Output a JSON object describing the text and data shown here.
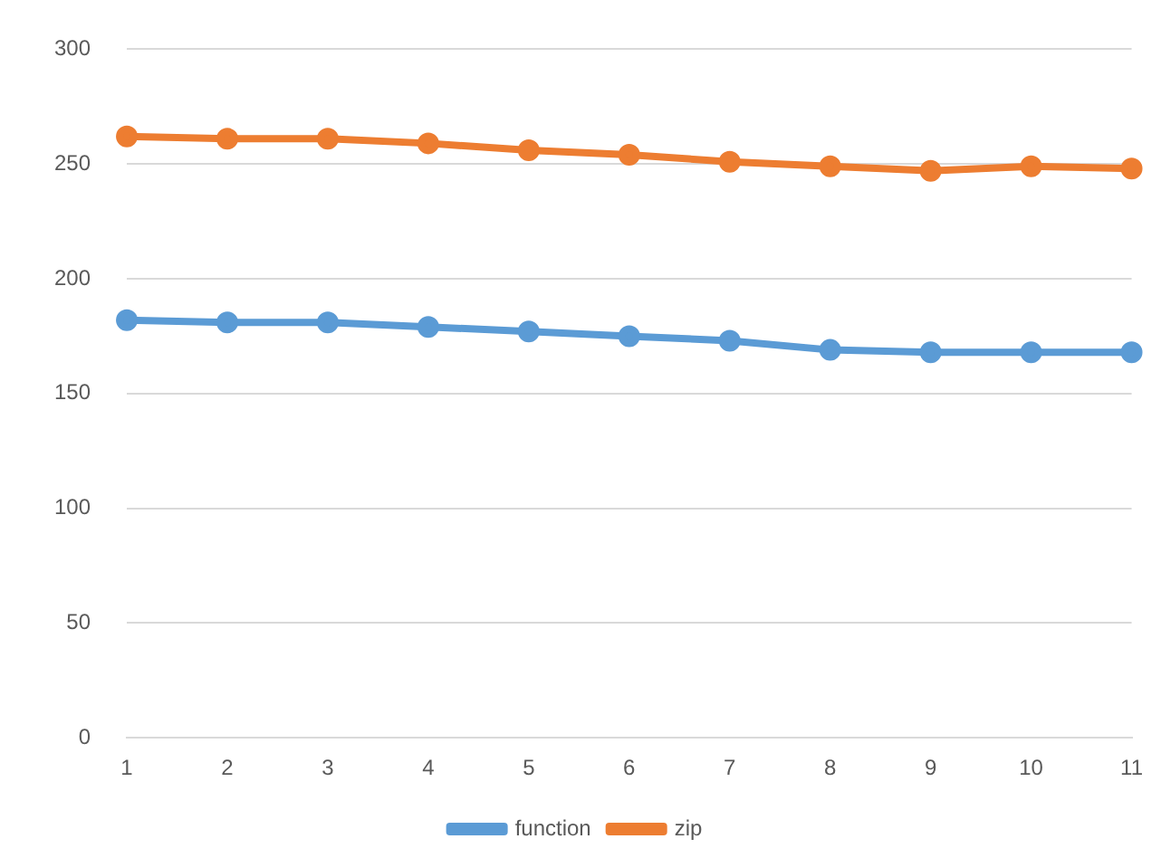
{
  "chart_data": {
    "type": "line",
    "categories": [
      "1",
      "2",
      "3",
      "4",
      "5",
      "6",
      "7",
      "8",
      "9",
      "10",
      "11"
    ],
    "series": [
      {
        "name": "function",
        "color": "#5b9bd5",
        "values": [
          182,
          181,
          181,
          179,
          177,
          175,
          173,
          169,
          168,
          168,
          168
        ]
      },
      {
        "name": "zip",
        "color": "#ed7d31",
        "values": [
          262,
          261,
          261,
          259,
          256,
          254,
          251,
          249,
          247,
          249,
          248
        ]
      }
    ],
    "ylim": [
      0,
      300
    ],
    "yticks": [
      0,
      50,
      100,
      150,
      200,
      250,
      300
    ],
    "grid": "y",
    "legend": "bottom",
    "marker": "circle"
  }
}
